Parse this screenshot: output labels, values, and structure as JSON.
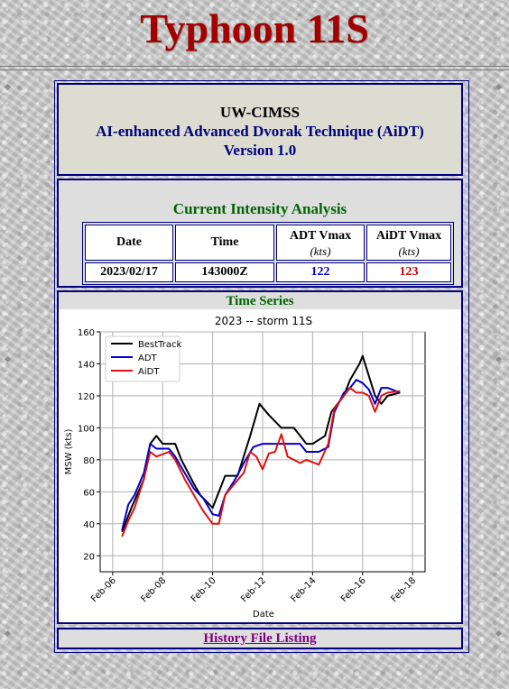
{
  "page": {
    "title": "Typhoon 11S"
  },
  "header": {
    "line1": "UW-CIMSS",
    "line2": "AI-enhanced Advanced Dvorak Technique (AiDT)",
    "line3": "Version 1.0"
  },
  "current": {
    "title": "Current Intensity Analysis",
    "col_date": "Date",
    "col_time": "Time",
    "col_adt": "ADT Vmax",
    "col_aidt": "AiDT Vmax",
    "unit": "(kts)",
    "date": "2023/02/17",
    "time": "143000Z",
    "adt_vmax": "122",
    "aidt_vmax": "123",
    "adt_color": "#0000cc",
    "aidt_color": "#cc0000"
  },
  "timeseries": {
    "title": "Time Series"
  },
  "history_link": "History File Listing",
  "colors": {
    "title": "#a30000",
    "navy": "#000080",
    "green": "#006400",
    "link": "#800080"
  },
  "chart_data": {
    "type": "line",
    "title": "2023 -- storm 11S",
    "xlabel": "Date",
    "ylabel": "MSW (kts)",
    "ylim": [
      10,
      160
    ],
    "xlim": [
      "2023-02-05T12",
      "2023-02-18T12"
    ],
    "yticks": [
      20,
      40,
      60,
      80,
      100,
      120,
      140,
      160
    ],
    "xticks": [
      {
        "label": "Feb-06",
        "date": "2023-02-06"
      },
      {
        "label": "Feb-08",
        "date": "2023-02-08"
      },
      {
        "label": "Feb-10",
        "date": "2023-02-10"
      },
      {
        "label": "Feb-12",
        "date": "2023-02-12"
      },
      {
        "label": "Feb-14",
        "date": "2023-02-14"
      },
      {
        "label": "Feb-16",
        "date": "2023-02-16"
      },
      {
        "label": "Feb-18",
        "date": "2023-02-18"
      }
    ],
    "grid": true,
    "legend": "upper-left",
    "series": [
      {
        "name": "BestTrack",
        "color": "#000000",
        "points": [
          [
            "2023-02-06T09",
            35
          ],
          [
            "2023-02-06T18",
            50
          ],
          [
            "2023-02-07T06",
            68
          ],
          [
            "2023-02-07T12",
            90
          ],
          [
            "2023-02-07T18",
            95
          ],
          [
            "2023-02-08T00",
            90
          ],
          [
            "2023-02-08T12",
            90
          ],
          [
            "2023-02-08T18",
            80
          ],
          [
            "2023-02-09T06",
            65
          ],
          [
            "2023-02-09T12",
            58
          ],
          [
            "2023-02-10T00",
            50
          ],
          [
            "2023-02-10T12",
            70
          ],
          [
            "2023-02-11T00",
            70
          ],
          [
            "2023-02-11T12",
            95
          ],
          [
            "2023-02-11T21",
            115
          ],
          [
            "2023-02-12T06",
            108
          ],
          [
            "2023-02-12T18",
            100
          ],
          [
            "2023-02-13T06",
            100
          ],
          [
            "2023-02-13T18",
            90
          ],
          [
            "2023-02-14T00",
            90
          ],
          [
            "2023-02-14T12",
            95
          ],
          [
            "2023-02-14T18",
            110
          ],
          [
            "2023-02-15T06",
            120
          ],
          [
            "2023-02-15T12",
            130
          ],
          [
            "2023-02-15T21",
            140
          ],
          [
            "2023-02-16T00",
            145
          ],
          [
            "2023-02-16T12",
            120
          ],
          [
            "2023-02-16T18",
            115
          ],
          [
            "2023-02-17T00",
            120
          ],
          [
            "2023-02-17T12",
            122
          ]
        ]
      },
      {
        "name": "ADT",
        "color": "#0000cc",
        "points": [
          [
            "2023-02-06T09",
            36
          ],
          [
            "2023-02-06T15",
            52
          ],
          [
            "2023-02-06T21",
            58
          ],
          [
            "2023-02-07T06",
            72
          ],
          [
            "2023-02-07T12",
            90
          ],
          [
            "2023-02-07T18",
            87
          ],
          [
            "2023-02-08T06",
            87
          ],
          [
            "2023-02-08T12",
            82
          ],
          [
            "2023-02-08T21",
            72
          ],
          [
            "2023-02-09T06",
            62
          ],
          [
            "2023-02-09T15",
            56
          ],
          [
            "2023-02-10T00",
            46
          ],
          [
            "2023-02-10T06",
            45
          ],
          [
            "2023-02-10T12",
            58
          ],
          [
            "2023-02-10T21",
            67
          ],
          [
            "2023-02-11T06",
            78
          ],
          [
            "2023-02-11T15",
            88
          ],
          [
            "2023-02-12T00",
            90
          ],
          [
            "2023-02-12T12",
            90
          ],
          [
            "2023-02-13T00",
            90
          ],
          [
            "2023-02-13T12",
            90
          ],
          [
            "2023-02-13T18",
            85
          ],
          [
            "2023-02-14T06",
            85
          ],
          [
            "2023-02-14T15",
            88
          ],
          [
            "2023-02-14T21",
            110
          ],
          [
            "2023-02-15T06",
            122
          ],
          [
            "2023-02-15T12",
            125
          ],
          [
            "2023-02-15T18",
            130
          ],
          [
            "2023-02-16T00",
            128
          ],
          [
            "2023-02-16T06",
            124
          ],
          [
            "2023-02-16T12",
            115
          ],
          [
            "2023-02-16T18",
            125
          ],
          [
            "2023-02-17T00",
            125
          ],
          [
            "2023-02-17T12",
            122
          ]
        ]
      },
      {
        "name": "AiDT",
        "color": "#dd1111",
        "points": [
          [
            "2023-02-06T09",
            32
          ],
          [
            "2023-02-06T15",
            42
          ],
          [
            "2023-02-06T21",
            50
          ],
          [
            "2023-02-07T06",
            68
          ],
          [
            "2023-02-07T12",
            85
          ],
          [
            "2023-02-07T18",
            82
          ],
          [
            "2023-02-08T06",
            85
          ],
          [
            "2023-02-08T12",
            80
          ],
          [
            "2023-02-08T21",
            68
          ],
          [
            "2023-02-09T06",
            58
          ],
          [
            "2023-02-09T15",
            48
          ],
          [
            "2023-02-10T00",
            40
          ],
          [
            "2023-02-10T06",
            40
          ],
          [
            "2023-02-10T12",
            58
          ],
          [
            "2023-02-10T21",
            65
          ],
          [
            "2023-02-11T06",
            72
          ],
          [
            "2023-02-11T12",
            85
          ],
          [
            "2023-02-11T18",
            82
          ],
          [
            "2023-02-12T00",
            74
          ],
          [
            "2023-02-12T06",
            84
          ],
          [
            "2023-02-12T12",
            85
          ],
          [
            "2023-02-12T18",
            96
          ],
          [
            "2023-02-13T00",
            82
          ],
          [
            "2023-02-13T12",
            78
          ],
          [
            "2023-02-13T18",
            80
          ],
          [
            "2023-02-14T06",
            77
          ],
          [
            "2023-02-14T15",
            90
          ],
          [
            "2023-02-14T21",
            112
          ],
          [
            "2023-02-15T06",
            120
          ],
          [
            "2023-02-15T12",
            125
          ],
          [
            "2023-02-15T18",
            122
          ],
          [
            "2023-02-16T00",
            122
          ],
          [
            "2023-02-16T06",
            120
          ],
          [
            "2023-02-16T12",
            110
          ],
          [
            "2023-02-16T18",
            120
          ],
          [
            "2023-02-17T00",
            122
          ],
          [
            "2023-02-17T12",
            123
          ]
        ]
      }
    ]
  }
}
